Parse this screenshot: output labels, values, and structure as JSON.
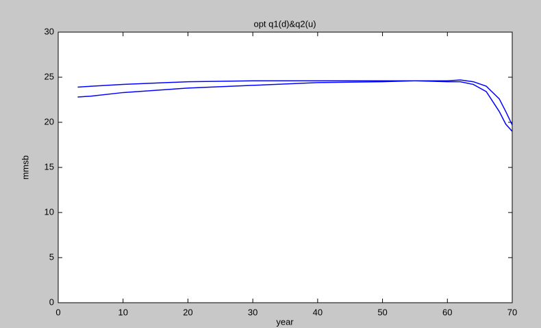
{
  "chart_data": {
    "type": "line",
    "title": "opt q1(d)&q2(u)",
    "x_label": "year",
    "y_label": "mmsb",
    "x": [
      3,
      5,
      10,
      20,
      30,
      40,
      50,
      55,
      60,
      62,
      64,
      66,
      68,
      69,
      70
    ],
    "series": [
      {
        "color": "#0000ff",
        "values": [
          23.9,
          24.0,
          24.2,
          24.5,
          24.6,
          24.6,
          24.6,
          24.6,
          24.5,
          24.5,
          24.2,
          23.4,
          21.2,
          19.8,
          19.0
        ]
      },
      {
        "color": "#0000ff",
        "values": [
          22.8,
          22.9,
          23.3,
          23.8,
          24.1,
          24.4,
          24.5,
          24.6,
          24.6,
          24.7,
          24.5,
          24.0,
          22.6,
          21.2,
          19.7
        ]
      }
    ],
    "xlim": [
      0,
      70
    ],
    "xticks": [
      0,
      10,
      20,
      30,
      40,
      50,
      60,
      70
    ],
    "ylim": [
      0,
      30
    ],
    "yticks": [
      0,
      5,
      10,
      15,
      20,
      25,
      30
    ]
  }
}
